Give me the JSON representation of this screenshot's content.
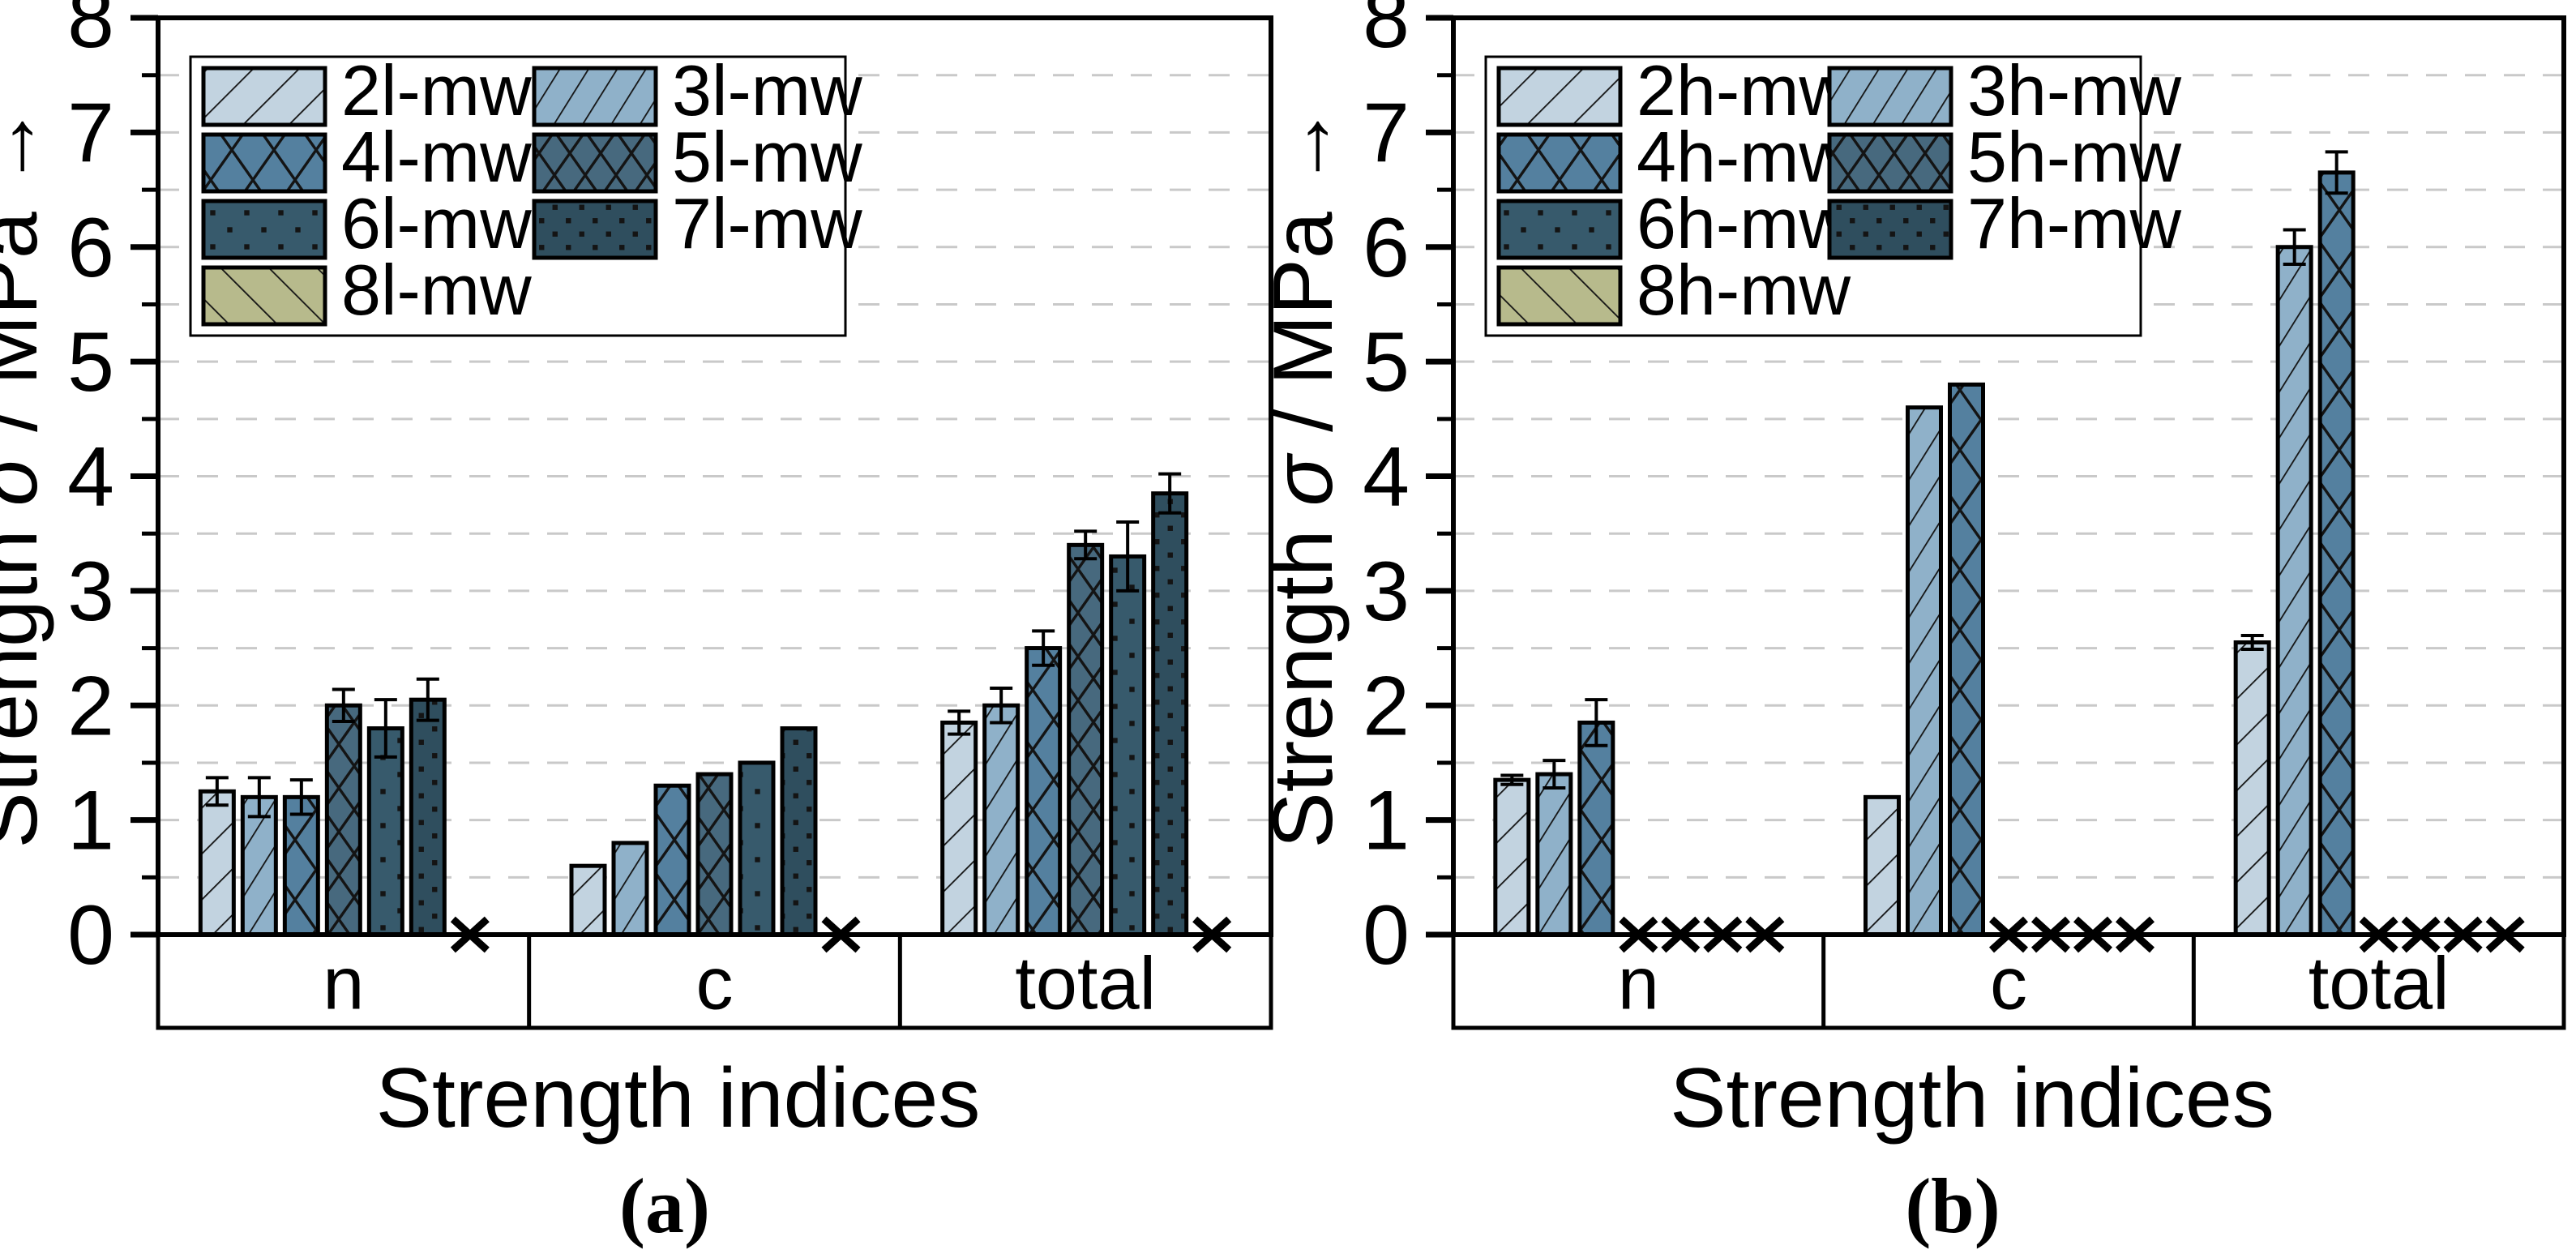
{
  "figure": {
    "background": "#ffffff",
    "caption_a": "(a)",
    "caption_b": "(b)"
  },
  "chart_data": [
    {
      "type": "bar",
      "panel_label": "(a)",
      "title": "",
      "xlabel": "Strength indices",
      "ylabel": "Strength σ / MPa →",
      "ylim": [
        0,
        8
      ],
      "yticks": [
        0,
        1,
        2,
        3,
        4,
        5,
        6,
        7,
        8
      ],
      "ytick_minor_step": 0.5,
      "grid": "dashed horizontal every 0.5",
      "legend_position": "top-left",
      "legend_columns": 2,
      "missing_marker": "x",
      "categories": [
        "n",
        "c",
        "total"
      ],
      "series": [
        {
          "name": "2l-mw",
          "color": "#c2d3e0",
          "pattern": "diag",
          "values": [
            1.25,
            0.6,
            1.85
          ],
          "errors": [
            0.12,
            null,
            0.1
          ]
        },
        {
          "name": "3l-mw",
          "color": "#8fb1c9",
          "pattern": "diag-steep",
          "values": [
            1.2,
            0.8,
            2.0
          ],
          "errors": [
            0.17,
            null,
            0.15
          ]
        },
        {
          "name": "4l-mw",
          "color": "#54809f",
          "pattern": "cross",
          "values": [
            1.2,
            1.3,
            2.5
          ],
          "errors": [
            0.15,
            null,
            0.15
          ]
        },
        {
          "name": "5l-mw",
          "color": "#47697e",
          "pattern": "cross-dense",
          "values": [
            2.0,
            1.4,
            3.4
          ],
          "errors": [
            0.14,
            null,
            0.12
          ]
        },
        {
          "name": "6l-mw",
          "color": "#375a6c",
          "pattern": "dots",
          "values": [
            1.8,
            1.5,
            3.3
          ],
          "errors": [
            0.25,
            null,
            0.3
          ]
        },
        {
          "name": "7l-mw",
          "color": "#2f4e5e",
          "pattern": "dots-dense",
          "values": [
            2.05,
            1.8,
            3.85
          ],
          "errors": [
            0.18,
            null,
            0.17
          ]
        },
        {
          "name": "8l-mw",
          "color": "#b7ba8c",
          "pattern": "diag-back",
          "values": [
            null,
            null,
            null
          ],
          "errors": [
            null,
            null,
            null
          ]
        }
      ]
    },
    {
      "type": "bar",
      "panel_label": "(b)",
      "title": "",
      "xlabel": "Strength indices",
      "ylabel": "Strength σ / MPa →",
      "ylim": [
        0,
        8
      ],
      "yticks": [
        0,
        1,
        2,
        3,
        4,
        5,
        6,
        7,
        8
      ],
      "ytick_minor_step": 0.5,
      "grid": "dashed horizontal every 0.5",
      "legend_position": "top-left",
      "legend_columns": 2,
      "missing_marker": "x",
      "categories": [
        "n",
        "c",
        "total"
      ],
      "series": [
        {
          "name": "2h-mw",
          "color": "#c2d3e0",
          "pattern": "diag",
          "values": [
            1.35,
            1.2,
            2.55
          ],
          "errors": [
            0.04,
            null,
            0.06
          ]
        },
        {
          "name": "3h-mw",
          "color": "#8fb1c9",
          "pattern": "diag-steep",
          "values": [
            1.4,
            4.6,
            6.0
          ],
          "errors": [
            0.12,
            null,
            0.15
          ]
        },
        {
          "name": "4h-mw",
          "color": "#54809f",
          "pattern": "cross",
          "values": [
            1.85,
            4.8,
            6.65
          ],
          "errors": [
            0.2,
            null,
            0.18
          ]
        },
        {
          "name": "5h-mw",
          "color": "#47697e",
          "pattern": "cross-dense",
          "values": [
            null,
            null,
            null
          ],
          "errors": [
            null,
            null,
            null
          ]
        },
        {
          "name": "6h-mw",
          "color": "#375a6c",
          "pattern": "dots",
          "values": [
            null,
            null,
            null
          ],
          "errors": [
            null,
            null,
            null
          ]
        },
        {
          "name": "7h-mw",
          "color": "#2f4e5e",
          "pattern": "dots-dense",
          "values": [
            null,
            null,
            null
          ],
          "errors": [
            null,
            null,
            null
          ]
        },
        {
          "name": "8h-mw",
          "color": "#b7ba8c",
          "pattern": "diag-back",
          "values": [
            null,
            null,
            null
          ],
          "errors": [
            null,
            null,
            null
          ]
        }
      ]
    }
  ]
}
